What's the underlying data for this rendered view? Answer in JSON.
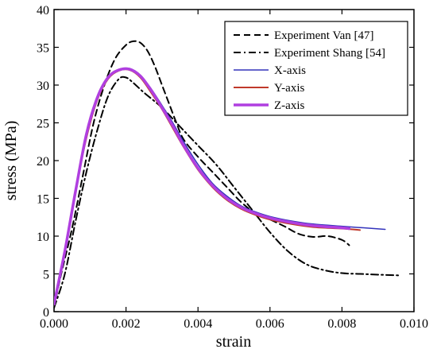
{
  "chart_data": {
    "type": "line",
    "xlabel": "strain",
    "ylabel": "stress (MPa)",
    "xlim": [
      0.0,
      0.01
    ],
    "ylim": [
      0,
      40
    ],
    "x_ticks": [
      "0.000",
      "0.002",
      "0.004",
      "0.006",
      "0.008",
      "0.010"
    ],
    "y_ticks": [
      "0",
      "5",
      "10",
      "15",
      "20",
      "25",
      "30",
      "35",
      "40"
    ],
    "legend_position": "top-right",
    "grid": false,
    "series": [
      {
        "name": "Experiment Van [47]",
        "color": "#000000",
        "dash": "dashed",
        "width": 2,
        "points": [
          [
            0.0,
            0.5
          ],
          [
            0.0002,
            5
          ],
          [
            0.0005,
            11
          ],
          [
            0.0008,
            18
          ],
          [
            0.0011,
            25
          ],
          [
            0.0014,
            30
          ],
          [
            0.0017,
            33.5
          ],
          [
            0.002,
            35.3
          ],
          [
            0.0022,
            35.8
          ],
          [
            0.0024,
            35.6
          ],
          [
            0.0026,
            34.5
          ],
          [
            0.0028,
            32.5
          ],
          [
            0.003,
            30
          ],
          [
            0.0032,
            27.5
          ],
          [
            0.0034,
            25
          ],
          [
            0.0036,
            22.8
          ],
          [
            0.004,
            20.5
          ],
          [
            0.0044,
            18.5
          ],
          [
            0.0048,
            16.5
          ],
          [
            0.0052,
            14.5
          ],
          [
            0.0056,
            13
          ],
          [
            0.006,
            12.2
          ],
          [
            0.0064,
            11.3
          ],
          [
            0.0068,
            10.3
          ],
          [
            0.0072,
            9.9
          ],
          [
            0.0076,
            10
          ],
          [
            0.008,
            9.5
          ],
          [
            0.0082,
            8.8
          ]
        ]
      },
      {
        "name": "Experiment Shang [54]",
        "color": "#000000",
        "dash": "dashdot",
        "width": 2,
        "points": [
          [
            0.0,
            0.5
          ],
          [
            0.0003,
            5
          ],
          [
            0.0006,
            12
          ],
          [
            0.0009,
            18.5
          ],
          [
            0.0012,
            24
          ],
          [
            0.0015,
            28.5
          ],
          [
            0.0018,
            30.8
          ],
          [
            0.002,
            31
          ],
          [
            0.0022,
            30.3
          ],
          [
            0.0025,
            29
          ],
          [
            0.003,
            27
          ],
          [
            0.0035,
            24.5
          ],
          [
            0.004,
            22
          ],
          [
            0.0045,
            19.5
          ],
          [
            0.005,
            16.5
          ],
          [
            0.0055,
            13.5
          ],
          [
            0.006,
            10.5
          ],
          [
            0.0065,
            8
          ],
          [
            0.007,
            6.3
          ],
          [
            0.0075,
            5.5
          ],
          [
            0.008,
            5.1
          ],
          [
            0.0085,
            5
          ],
          [
            0.009,
            4.9
          ],
          [
            0.0096,
            4.8
          ]
        ]
      },
      {
        "name": "X-axis",
        "color": "#3333bb",
        "dash": "solid",
        "width": 1.5,
        "points": [
          [
            0.0,
            1
          ],
          [
            0.0003,
            8
          ],
          [
            0.0006,
            16
          ],
          [
            0.0009,
            23.5
          ],
          [
            0.0012,
            28.5
          ],
          [
            0.0015,
            31
          ],
          [
            0.0018,
            32
          ],
          [
            0.0021,
            32.2
          ],
          [
            0.0024,
            31.3
          ],
          [
            0.0027,
            29.5
          ],
          [
            0.003,
            27.3
          ],
          [
            0.0033,
            25
          ],
          [
            0.0036,
            22.5
          ],
          [
            0.004,
            19.5
          ],
          [
            0.0044,
            17
          ],
          [
            0.0048,
            15.3
          ],
          [
            0.0052,
            14
          ],
          [
            0.0056,
            13.2
          ],
          [
            0.006,
            12.6
          ],
          [
            0.0066,
            12
          ],
          [
            0.0072,
            11.6
          ],
          [
            0.008,
            11.3
          ],
          [
            0.0086,
            11.1
          ],
          [
            0.0092,
            10.9
          ]
        ]
      },
      {
        "name": "Y-axis",
        "color": "#c0392b",
        "dash": "solid",
        "width": 2,
        "points": [
          [
            0.0,
            1
          ],
          [
            0.0003,
            8
          ],
          [
            0.0006,
            16
          ],
          [
            0.0009,
            23
          ],
          [
            0.0012,
            28
          ],
          [
            0.0015,
            30.8
          ],
          [
            0.0018,
            31.9
          ],
          [
            0.0021,
            32
          ],
          [
            0.0024,
            31
          ],
          [
            0.0027,
            29
          ],
          [
            0.003,
            26.8
          ],
          [
            0.0033,
            24.3
          ],
          [
            0.0036,
            21.8
          ],
          [
            0.004,
            18.8
          ],
          [
            0.0044,
            16.5
          ],
          [
            0.0048,
            14.8
          ],
          [
            0.0052,
            13.6
          ],
          [
            0.0056,
            12.8
          ],
          [
            0.006,
            12.2
          ],
          [
            0.0066,
            11.6
          ],
          [
            0.0072,
            11.2
          ],
          [
            0.008,
            11
          ],
          [
            0.0085,
            10.8
          ]
        ]
      },
      {
        "name": "Z-axis",
        "color": "#b03fe0",
        "dash": "solid",
        "width": 3.5,
        "points": [
          [
            0.0,
            1
          ],
          [
            0.0003,
            8
          ],
          [
            0.0006,
            16
          ],
          [
            0.0009,
            23.5
          ],
          [
            0.0012,
            28.3
          ],
          [
            0.0015,
            31
          ],
          [
            0.0018,
            32
          ],
          [
            0.0021,
            32.1
          ],
          [
            0.0024,
            31.2
          ],
          [
            0.0027,
            29.3
          ],
          [
            0.003,
            27
          ],
          [
            0.0033,
            24.6
          ],
          [
            0.0036,
            22
          ],
          [
            0.004,
            19
          ],
          [
            0.0044,
            16.7
          ],
          [
            0.0048,
            15
          ],
          [
            0.0052,
            13.8
          ],
          [
            0.0056,
            13
          ],
          [
            0.006,
            12.4
          ],
          [
            0.0066,
            11.8
          ],
          [
            0.0072,
            11.4
          ],
          [
            0.008,
            11.1
          ],
          [
            0.0082,
            11
          ]
        ]
      }
    ]
  }
}
